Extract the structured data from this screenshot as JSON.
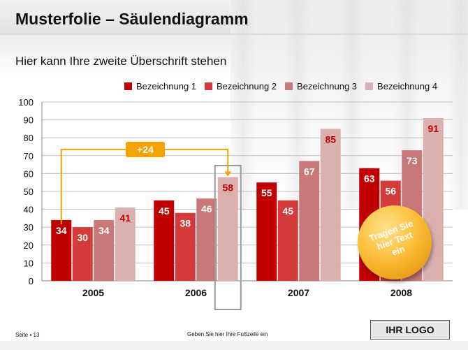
{
  "slide": {
    "title": "Musterfolie – Säulendiagramm",
    "subtitle": "Hier kann Ihre zweite Überschrift stehen",
    "footer_page": "Seite ▪ 13",
    "footer_text": "Geben Sie hier Ihre Fußzeile ein",
    "logo": "IHR LOGO"
  },
  "callout": {
    "label": "+24"
  },
  "badge": {
    "lines": [
      "Tragen Sie",
      "hier Text",
      "ein"
    ]
  },
  "chart_data": {
    "type": "bar",
    "categories": [
      "2005",
      "2006",
      "2007",
      "2008"
    ],
    "series": [
      {
        "name": "Bezeichnung 1",
        "values": [
          34,
          45,
          55,
          63
        ],
        "color": "#c00000",
        "label_color": "#ffffff"
      },
      {
        "name": "Bezeichnung 2",
        "values": [
          30,
          38,
          45,
          56
        ],
        "color": "#d43c3c",
        "label_color": "#ffffff"
      },
      {
        "name": "Bezeichnung 3",
        "values": [
          34,
          46,
          67,
          73
        ],
        "color": "#c87878",
        "label_color": "#ffffff"
      },
      {
        "name": "Bezeichnung 4",
        "values": [
          41,
          58,
          85,
          91
        ],
        "color": "#ddb0b0",
        "label_color": "#c00000"
      }
    ],
    "y_ticks": [
      "0",
      "10",
      "20",
      "30",
      "40",
      "50",
      "60",
      "70",
      "80",
      "90",
      "100"
    ],
    "ylim": [
      0,
      100
    ],
    "grid": true,
    "legend": "top",
    "highlight": {
      "category": "2006",
      "series": "Bezeichnung 4"
    }
  }
}
